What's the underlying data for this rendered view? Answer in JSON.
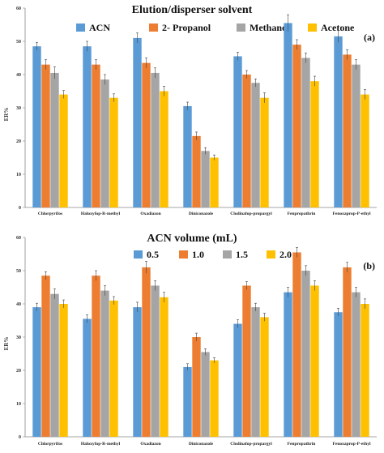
{
  "colors": [
    "#5b9bd5",
    "#ed7d31",
    "#a5a5a5",
    "#ffc000"
  ],
  "chart_data": [
    {
      "type": "bar",
      "title": "Elution/disperser solvent",
      "panel_label": "(a)",
      "ylabel": "ER%",
      "ylim": [
        0,
        60
      ],
      "yticks": [
        "0",
        "10",
        "20",
        "30",
        "40",
        "50",
        "60"
      ],
      "grid": false,
      "legend": "top-center",
      "categories": [
        "Chlorpyrifos",
        "Haloxyfop-R-methyl",
        "Oxadiazon",
        "Diniconazole",
        "Clodinafop-propargyl",
        "Fenpropathrin",
        "Fenoxaprop-P-ethyl"
      ],
      "series": [
        {
          "name": "ACN",
          "values": [
            48.5,
            48.5,
            51,
            30.5,
            45.5,
            55.5,
            51.5
          ],
          "errors": [
            1.2,
            1.5,
            1.5,
            1.2,
            1.2,
            2.5,
            1.8
          ]
        },
        {
          "name": "2- Propanol",
          "values": [
            43,
            43,
            43.5,
            21.5,
            40,
            49,
            46
          ],
          "errors": [
            1.5,
            1.5,
            1.5,
            1.2,
            1.2,
            1.5,
            1.5
          ]
        },
        {
          "name": "Methanol",
          "values": [
            40.5,
            38.5,
            40.5,
            17,
            37.5,
            45,
            43
          ],
          "errors": [
            1.8,
            1.5,
            1.5,
            1.0,
            1.2,
            1.5,
            1.5
          ]
        },
        {
          "name": "Acetone",
          "values": [
            34,
            33,
            35,
            15,
            33,
            38,
            34
          ],
          "errors": [
            1.2,
            1.2,
            1.5,
            0.8,
            1.5,
            1.5,
            1.5
          ]
        }
      ]
    },
    {
      "type": "bar",
      "title": "ACN volume (mL)",
      "panel_label": "(b)",
      "ylabel": "ER%",
      "ylim": [
        0,
        60
      ],
      "yticks": [
        "0",
        "10",
        "20",
        "30",
        "40",
        "50",
        "60"
      ],
      "grid": false,
      "legend": "top-center",
      "categories": [
        "Chlorpyrifos",
        "Haloxyfop-R-methyl",
        "Oxadiazon",
        "Diniconazole",
        "Clodinafop-propargyl",
        "Fenpropathrin",
        "Fenoxaprop-P-ethyl"
      ],
      "series": [
        {
          "name": "0.5",
          "values": [
            39,
            35.5,
            39,
            21,
            34,
            43.5,
            37.5
          ],
          "errors": [
            1.2,
            1.2,
            1.5,
            1.0,
            1.2,
            1.5,
            1.2
          ]
        },
        {
          "name": "1.0",
          "values": [
            48.5,
            48.5,
            51,
            30,
            45.5,
            55.5,
            51
          ],
          "errors": [
            1.2,
            1.5,
            1.8,
            1.2,
            1.2,
            1.5,
            1.5
          ]
        },
        {
          "name": "1.5",
          "values": [
            43,
            44,
            45.5,
            25.5,
            39,
            50,
            43.5
          ],
          "errors": [
            1.5,
            1.5,
            1.5,
            1.0,
            1.2,
            1.5,
            1.5
          ]
        },
        {
          "name": "2.0",
          "values": [
            40,
            41,
            42,
            23,
            36,
            45.5,
            40
          ],
          "errors": [
            1.2,
            1.2,
            1.5,
            0.8,
            1.2,
            1.5,
            1.5
          ]
        }
      ]
    }
  ]
}
